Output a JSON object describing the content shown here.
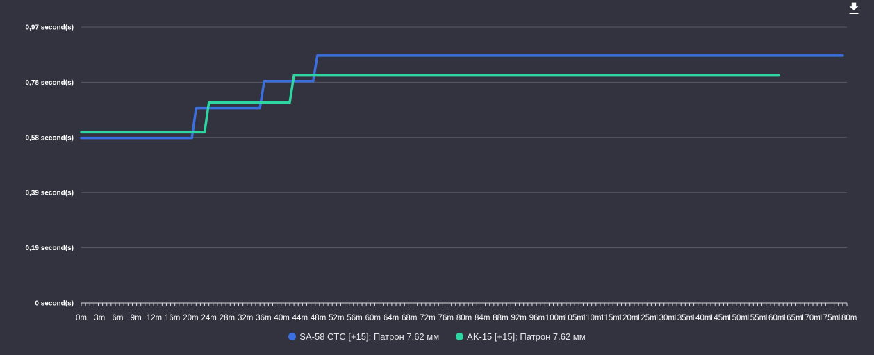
{
  "chart_data": {
    "type": "line",
    "title": "",
    "xlabel": "",
    "ylabel": "",
    "y_tick_labels": [
      "0 second(s)",
      "0,19 second(s)",
      "0,39 second(s)",
      "0,58 second(s)",
      "0,78 second(s)",
      "0,97 second(s)"
    ],
    "y_tick_values": [
      0,
      0.194,
      0.388,
      0.582,
      0.776,
      0.97
    ],
    "ylim": [
      0,
      0.97
    ],
    "x_tick_labels": [
      "0m",
      "3m",
      "6m",
      "9m",
      "12m",
      "16m",
      "20m",
      "24m",
      "28m",
      "32m",
      "36m",
      "40m",
      "44m",
      "48m",
      "52m",
      "56m",
      "60m",
      "64m",
      "68m",
      "72m",
      "76m",
      "80m",
      "84m",
      "88m",
      "92m",
      "96m",
      "100m",
      "105m",
      "110m",
      "115m",
      "120m",
      "125m",
      "130m",
      "135m",
      "140m",
      "145m",
      "150m",
      "155m",
      "160m",
      "165m",
      "170m",
      "175m",
      "180m"
    ],
    "xlim": [
      0,
      180
    ],
    "grid": true,
    "legend_position": "bottom",
    "series": [
      {
        "name": "SA-58 CTC [+15]; Патрон 7.62 мм",
        "color": "#3b6fdf",
        "x": [
          0,
          26,
          27,
          42,
          43,
          54.5,
          55.5,
          179
        ],
        "y": [
          0.58,
          0.58,
          0.685,
          0.685,
          0.78,
          0.78,
          0.87,
          0.87
        ]
      },
      {
        "name": "AK-15 [+15]; Патрон 7.62 мм",
        "color": "#2ed6a1",
        "x": [
          0,
          29,
          30,
          49,
          50,
          164
        ],
        "y": [
          0.6,
          0.6,
          0.705,
          0.705,
          0.8,
          0.8
        ]
      }
    ]
  },
  "legend": {
    "item_1": "SA-58 CTC [+15]; Патрон 7.62 мм",
    "item_2": "AK-15 [+15]; Патрон 7.62 мм"
  },
  "colors": {
    "background": "#32333e",
    "grid": "#5a5b66"
  },
  "icons": {
    "download": "download-icon"
  }
}
